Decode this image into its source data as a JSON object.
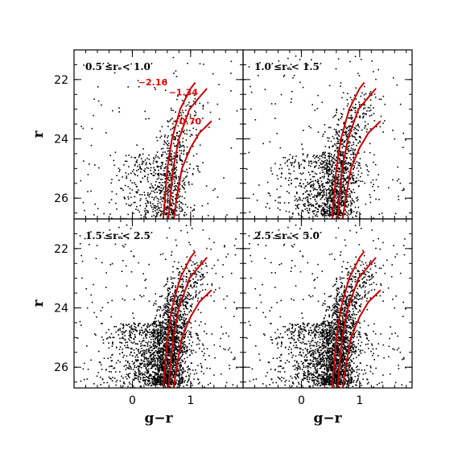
{
  "figure": {
    "xlabel": "g−r",
    "ylabel": "r"
  },
  "chart_data": [
    {
      "type": "scatter",
      "panel": "top-left",
      "title": "0.5′≤rₑ< 1.0′",
      "xlim": [
        -1.0,
        1.9
      ],
      "ylim": [
        26.7,
        21.0
      ],
      "xticks": [
        0,
        1
      ],
      "yticks": [
        22,
        24,
        26
      ],
      "density": 0.35,
      "isochrones": [
        {
          "label": "−2.16",
          "points": [
            [
              0.53,
              26.7
            ],
            [
              0.56,
              26.0
            ],
            [
              0.6,
              25.0
            ],
            [
              0.68,
              24.0
            ],
            [
              0.82,
              23.0
            ],
            [
              1.0,
              22.3
            ],
            [
              1.08,
              22.1
            ]
          ]
        },
        {
          "label": "−1.34",
          "points": [
            [
              0.62,
              26.7
            ],
            [
              0.65,
              26.0
            ],
            [
              0.7,
              25.0
            ],
            [
              0.8,
              24.0
            ],
            [
              0.98,
              23.0
            ],
            [
              1.15,
              22.6
            ],
            [
              1.28,
              22.3
            ]
          ]
        },
        {
          "label": "−0.70",
          "points": [
            [
              0.71,
              26.7
            ],
            [
              0.76,
              26.0
            ],
            [
              0.85,
              25.0
            ],
            [
              1.0,
              24.3
            ],
            [
              1.15,
              23.8
            ],
            [
              1.36,
              23.4
            ]
          ]
        }
      ]
    },
    {
      "type": "scatter",
      "panel": "top-right",
      "title": "1.0′≤rₑ< 1.5′",
      "xlim": [
        -1.0,
        1.9
      ],
      "ylim": [
        26.7,
        21.0
      ],
      "xticks": [
        0,
        1
      ],
      "yticks": [
        22,
        24,
        26
      ],
      "density": 0.6,
      "isochrones": [
        {
          "label": "",
          "points": [
            [
              0.53,
              26.7
            ],
            [
              0.56,
              26.0
            ],
            [
              0.6,
              25.0
            ],
            [
              0.68,
              24.0
            ],
            [
              0.82,
              23.0
            ],
            [
              1.0,
              22.3
            ],
            [
              1.08,
              22.1
            ]
          ]
        },
        {
          "label": "",
          "points": [
            [
              0.62,
              26.7
            ],
            [
              0.65,
              26.0
            ],
            [
              0.7,
              25.0
            ],
            [
              0.8,
              24.0
            ],
            [
              0.98,
              23.0
            ],
            [
              1.15,
              22.6
            ],
            [
              1.28,
              22.3
            ]
          ]
        },
        {
          "label": "",
          "points": [
            [
              0.71,
              26.7
            ],
            [
              0.76,
              26.0
            ],
            [
              0.85,
              25.0
            ],
            [
              1.0,
              24.3
            ],
            [
              1.15,
              23.8
            ],
            [
              1.36,
              23.4
            ]
          ]
        }
      ]
    },
    {
      "type": "scatter",
      "panel": "bottom-left",
      "title": "1.5′≤rₑ< 2.5′",
      "xlim": [
        -1.0,
        1.9
      ],
      "ylim": [
        26.7,
        21.0
      ],
      "xticks": [
        0,
        1
      ],
      "yticks": [
        22,
        24,
        26
      ],
      "density": 1.0,
      "isochrones": [
        {
          "label": "",
          "points": [
            [
              0.53,
              26.7
            ],
            [
              0.56,
              26.0
            ],
            [
              0.6,
              25.0
            ],
            [
              0.68,
              24.0
            ],
            [
              0.82,
              23.0
            ],
            [
              1.0,
              22.3
            ],
            [
              1.08,
              22.1
            ]
          ]
        },
        {
          "label": "",
          "points": [
            [
              0.62,
              26.7
            ],
            [
              0.65,
              26.0
            ],
            [
              0.7,
              25.0
            ],
            [
              0.8,
              24.0
            ],
            [
              0.98,
              23.0
            ],
            [
              1.15,
              22.6
            ],
            [
              1.28,
              22.3
            ]
          ]
        },
        {
          "label": "",
          "points": [
            [
              0.71,
              26.7
            ],
            [
              0.76,
              26.0
            ],
            [
              0.85,
              25.0
            ],
            [
              1.0,
              24.3
            ],
            [
              1.15,
              23.8
            ],
            [
              1.36,
              23.4
            ]
          ]
        }
      ]
    },
    {
      "type": "scatter",
      "panel": "bottom-right",
      "title": "2.5′≤rₑ< 5.0′",
      "xlim": [
        -1.0,
        1.9
      ],
      "ylim": [
        26.7,
        21.0
      ],
      "xticks": [
        0,
        1
      ],
      "yticks": [
        22,
        24,
        26
      ],
      "density": 1.0,
      "isochrones": [
        {
          "label": "",
          "points": [
            [
              0.53,
              26.7
            ],
            [
              0.56,
              26.0
            ],
            [
              0.6,
              25.0
            ],
            [
              0.68,
              24.0
            ],
            [
              0.82,
              23.0
            ],
            [
              1.0,
              22.3
            ],
            [
              1.08,
              22.1
            ]
          ]
        },
        {
          "label": "",
          "points": [
            [
              0.62,
              26.7
            ],
            [
              0.65,
              26.0
            ],
            [
              0.7,
              25.0
            ],
            [
              0.8,
              24.0
            ],
            [
              0.98,
              23.0
            ],
            [
              1.15,
              22.6
            ],
            [
              1.28,
              22.3
            ]
          ]
        },
        {
          "label": "",
          "points": [
            [
              0.71,
              26.7
            ],
            [
              0.76,
              26.0
            ],
            [
              0.85,
              25.0
            ],
            [
              1.0,
              24.3
            ],
            [
              1.15,
              23.8
            ],
            [
              1.36,
              23.4
            ]
          ]
        }
      ]
    }
  ],
  "colors": {
    "isochrone": "#cc0000",
    "isochrone_label": "#e00000",
    "points": "#000000"
  }
}
